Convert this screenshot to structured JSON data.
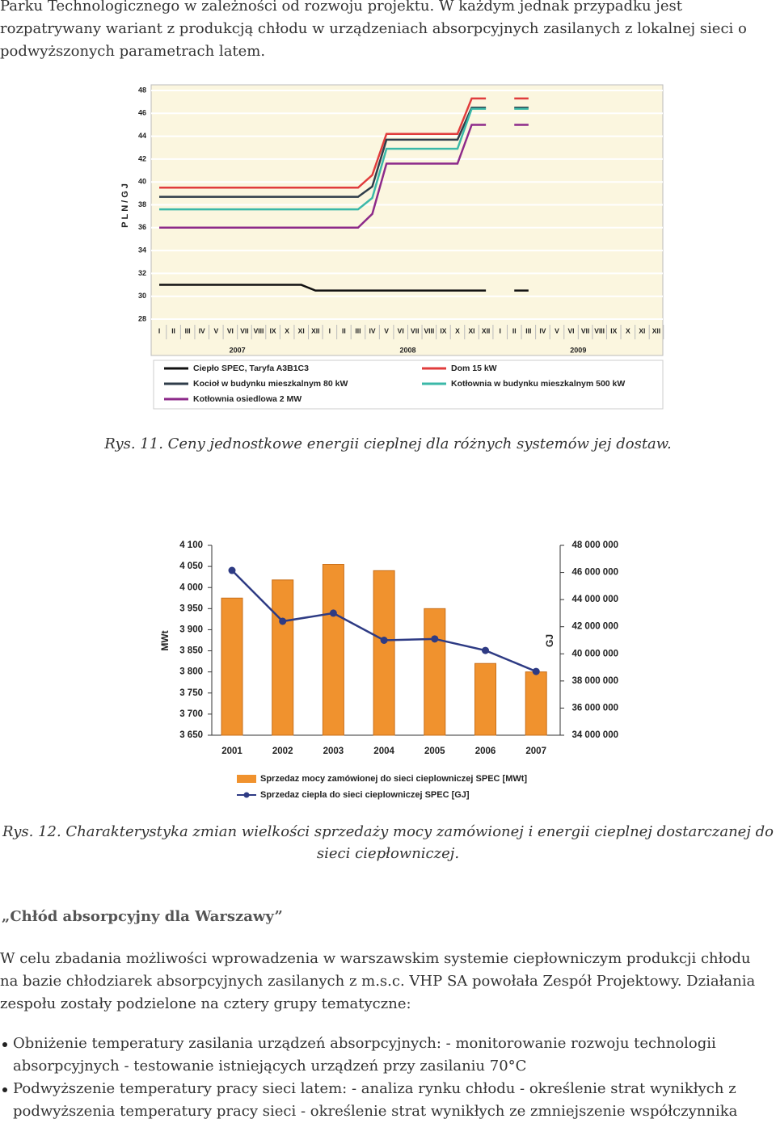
{
  "intro": "Parku Technologicznego w zależności od rozwoju projektu. W każdym jednak przypadku jest rozpatrywany wariant z produkcją chłodu w urządzeniach absorpcyjnych zasilanych z lokalnej sieci o podwyższonych parametrach latem.",
  "chart_data": [
    {
      "type": "line",
      "ylabel": "PLN/GJ",
      "categories": [
        "I",
        "II",
        "III",
        "IV",
        "V",
        "VI",
        "VII",
        "VIII",
        "IX",
        "X",
        "XI",
        "XII",
        "I",
        "II",
        "III",
        "IV",
        "V",
        "VI",
        "VII",
        "VIII",
        "IX",
        "X",
        "XI",
        "XII",
        "I",
        "II",
        "III",
        "IV",
        "V",
        "VI",
        "VII",
        "VIII",
        "IX",
        "X",
        "XI",
        "XII"
      ],
      "year_labels": [
        "2007",
        "2008",
        "2009"
      ],
      "ylim": [
        28,
        48
      ],
      "yticks": [
        28,
        30,
        32,
        34,
        36,
        38,
        40,
        42,
        44,
        46,
        48
      ],
      "grid": true,
      "series": [
        {
          "name": "Ciepło SPEC, Taryfa A3B1C3",
          "color": "#111111",
          "values": [
            31.0,
            31.0,
            31.0,
            31.0,
            31.0,
            31.0,
            31.0,
            31.0,
            31.0,
            31.0,
            31.0,
            30.5,
            30.5,
            30.5,
            30.5,
            30.5,
            30.5,
            30.5,
            30.5,
            30.5,
            30.5,
            30.5,
            30.5,
            30.5,
            null,
            30.5,
            30.5,
            null,
            null,
            null,
            null,
            null,
            null,
            null,
            null,
            null
          ]
        },
        {
          "name": "Dom 15 kW",
          "color": "#e03c3c",
          "values": [
            39.5,
            39.5,
            39.5,
            39.5,
            39.5,
            39.5,
            39.5,
            39.5,
            39.5,
            39.5,
            39.5,
            39.5,
            39.5,
            39.5,
            39.5,
            40.6,
            44.2,
            44.2,
            44.2,
            44.2,
            44.2,
            44.2,
            47.3,
            47.3,
            null,
            47.3,
            47.3,
            null,
            null,
            null,
            null,
            null,
            null,
            null,
            null,
            null
          ]
        },
        {
          "name": "Kocioł w budynku mieszkalnym 80 kW",
          "color": "#2f3d4a",
          "values": [
            38.7,
            38.7,
            38.7,
            38.7,
            38.7,
            38.7,
            38.7,
            38.7,
            38.7,
            38.7,
            38.7,
            38.7,
            38.7,
            38.7,
            38.7,
            39.6,
            43.7,
            43.7,
            43.7,
            43.7,
            43.7,
            43.7,
            46.5,
            46.5,
            null,
            46.5,
            46.5,
            null,
            null,
            null,
            null,
            null,
            null,
            null,
            null,
            null
          ]
        },
        {
          "name": "Kotłownia w budynku mieszkalnym 500 kW",
          "color": "#3bb8a8",
          "values": [
            37.6,
            37.6,
            37.6,
            37.6,
            37.6,
            37.6,
            37.6,
            37.6,
            37.6,
            37.6,
            37.6,
            37.6,
            37.6,
            37.6,
            37.6,
            38.6,
            42.9,
            42.9,
            42.9,
            42.9,
            42.9,
            42.9,
            46.4,
            46.4,
            null,
            46.4,
            46.4,
            null,
            null,
            null,
            null,
            null,
            null,
            null,
            null,
            null
          ]
        },
        {
          "name": "Kotłownia osiedlowa 2 MW",
          "color": "#8d2a8a",
          "values": [
            36.0,
            36.0,
            36.0,
            36.0,
            36.0,
            36.0,
            36.0,
            36.0,
            36.0,
            36.0,
            36.0,
            36.0,
            36.0,
            36.0,
            36.0,
            37.2,
            41.6,
            41.6,
            41.6,
            41.6,
            41.6,
            41.6,
            45.0,
            45.0,
            null,
            45.0,
            45.0,
            null,
            null,
            null,
            null,
            null,
            null,
            null,
            null,
            null
          ]
        }
      ]
    },
    {
      "type": "bar-line",
      "ylabel": "MWt",
      "y2label": "GJ",
      "categories": [
        "2001",
        "2002",
        "2003",
        "2004",
        "2005",
        "2006",
        "2007"
      ],
      "ylim": [
        3650,
        4100
      ],
      "yticks": [
        {
          "value": 3650,
          "label": "3 650"
        },
        {
          "value": 3700,
          "label": "3 700"
        },
        {
          "value": 3750,
          "label": "3 750"
        },
        {
          "value": 3800,
          "label": "3 800"
        },
        {
          "value": 3850,
          "label": "3 850"
        },
        {
          "value": 3900,
          "label": "3 900"
        },
        {
          "value": 3950,
          "label": "3 950"
        },
        {
          "value": 4000,
          "label": "4 000"
        },
        {
          "value": 4050,
          "label": "4 050"
        },
        {
          "value": 4100,
          "label": "4 100"
        }
      ],
      "y2lim": [
        34000000,
        48000000
      ],
      "y2ticks": [
        {
          "value": 34000000,
          "label": "34 000 000"
        },
        {
          "value": 36000000,
          "label": "36 000 000"
        },
        {
          "value": 38000000,
          "label": "38 000 000"
        },
        {
          "value": 40000000,
          "label": "40 000 000"
        },
        {
          "value": 42000000,
          "label": "42 000 000"
        },
        {
          "value": 44000000,
          "label": "44 000 000"
        },
        {
          "value": 46000000,
          "label": "46 000 000"
        },
        {
          "value": 48000000,
          "label": "48 000 000"
        }
      ],
      "series": [
        {
          "name": "Sprzedaz mocy zamówionej do sieci cieplowniczej SPEC [MWt]",
          "color": "#f0922e",
          "values": [
            3975,
            4018,
            4055,
            4040,
            3950,
            3820,
            3800
          ]
        },
        {
          "name": "Sprzedaz ciepla do sieci cieplowniczej SPEC [GJ]",
          "color": "#2e3b84",
          "axis": "y2",
          "values": [
            46150000,
            42400000,
            43000000,
            41000000,
            41100000,
            40250000,
            38700000
          ]
        }
      ]
    }
  ],
  "captions": [
    "Rys. 11. Ceny jednostkowe energii cieplnej dla różnych systemów jej dostaw.",
    "Rys. 12. Charakterystyka zmian wielkości sprzedaży mocy zamówionej i energii cieplnej dostarczanej do sieci ciepłowniczej."
  ],
  "heading": "„Chłód absorpcyjny dla Warszawy”",
  "paragraph": "W celu zbadania możliwości wprowadzenia w warszawskim systemie ciepłowniczym produkcji chłodu na bazie chłodziarek absorpcyjnych zasilanych z m.s.c. VHP SA powołała Zespół Projektowy. Działania zespołu zostały podzielone na cztery grupy tematyczne:",
  "list": [
    "Obniżenie temperatury zasilania urządzeń absorpcyjnych: - monitorowanie rozwoju technologii absorpcyjnych - testowanie istniejących urządzeń przy zasilaniu 70°C",
    "Podwyższenie temperatury pracy sieci latem: - analiza rynku chłodu - określenie strat wynikłych z podwyższenia temperatury pracy sieci - określenie strat wynikłych ze zmniejszenie współczynnika"
  ]
}
